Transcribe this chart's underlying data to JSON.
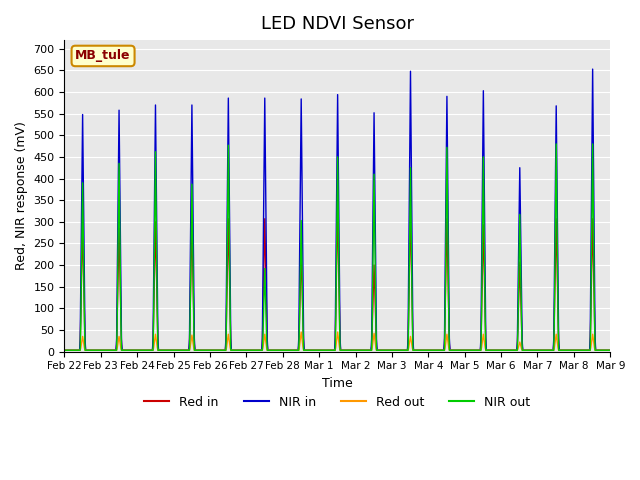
{
  "title": "LED NDVI Sensor",
  "xlabel": "Time",
  "ylabel": "Red, NIR response (mV)",
  "annotation": "MB_tule",
  "ylim": [
    0,
    720
  ],
  "yticks": [
    0,
    50,
    100,
    150,
    200,
    250,
    300,
    350,
    400,
    450,
    500,
    550,
    600,
    650,
    700
  ],
  "bg_color": "#e8e8e8",
  "legend": [
    "Red in",
    "NIR in",
    "Red out",
    "NIR out"
  ],
  "colors": [
    "#cc0000",
    "#0000cc",
    "#ff9900",
    "#00cc00"
  ],
  "x_labels": [
    "Feb 22",
    "Feb 23",
    "Feb 24",
    "Feb 25",
    "Feb 26",
    "Feb 27",
    "Feb 28",
    "Mar 1",
    "Mar 2",
    "Mar 3",
    "Mar 4",
    "Mar 5",
    "Mar 6",
    "Mar 7",
    "Mar 8",
    "Mar 9"
  ],
  "peaks_nir_in": [
    548,
    558,
    570,
    570,
    586,
    586,
    584,
    594,
    552,
    648,
    590,
    603,
    425,
    568,
    653
  ],
  "peaks_red_in": [
    297,
    285,
    300,
    300,
    307,
    307,
    230,
    335,
    200,
    325,
    307,
    293,
    207,
    307,
    307
  ],
  "peaks_red_out": [
    35,
    35,
    40,
    38,
    40,
    40,
    45,
    45,
    42,
    35,
    40,
    40,
    22,
    40,
    40
  ],
  "peaks_nir_out": [
    390,
    435,
    462,
    387,
    477,
    192,
    303,
    450,
    410,
    425,
    472,
    450,
    317,
    480,
    480
  ]
}
